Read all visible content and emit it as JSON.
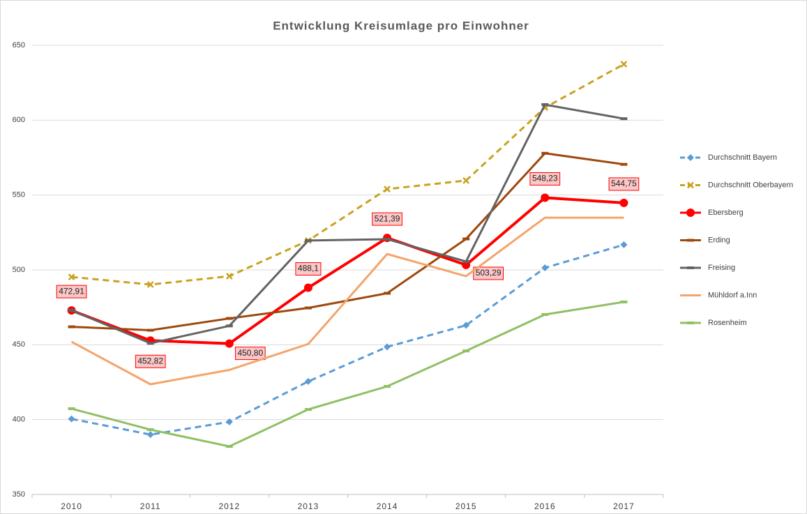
{
  "chart_data": {
    "type": "line",
    "title": "Entwicklung Kreisumlage pro Einwohner",
    "categories": [
      "2010",
      "2011",
      "2012",
      "2013",
      "2014",
      "2015",
      "2016",
      "2017"
    ],
    "ylim": [
      350,
      650
    ],
    "yticks": [
      350,
      400,
      450,
      500,
      550,
      600,
      650
    ],
    "grid": true,
    "legend": "right",
    "series": [
      {
        "name": "Durchschnitt Bayern",
        "color": "#5b9bd5",
        "dash": true,
        "marker": "diamond",
        "values": [
          400.5,
          390,
          398.5,
          425.5,
          448.6,
          463,
          501.4,
          516.8
        ]
      },
      {
        "name": "Durchschnitt Oberbayern",
        "color": "#c9a21f",
        "dash": true,
        "marker": "x",
        "values": [
          495.3,
          490.2,
          495.8,
          519.6,
          554,
          559.7,
          608.4,
          637.4
        ]
      },
      {
        "name": "Ebersberg",
        "color": "#ff0000",
        "dash": false,
        "marker": "circle",
        "values": [
          472.91,
          452.82,
          450.8,
          488.1,
          521.39,
          503.29,
          548.23,
          544.75
        ],
        "value_labels": [
          "472,91",
          "452,82",
          "450,80",
          "488,1",
          "521,39",
          "503,29",
          "548,23",
          "544,75"
        ]
      },
      {
        "name": "Erding",
        "color": "#9e480e",
        "dash": false,
        "marker": "dash",
        "values": [
          462,
          459.7,
          467.6,
          474.6,
          484.4,
          520.7,
          577.9,
          570.5
        ]
      },
      {
        "name": "Freising",
        "color": "#636363",
        "dash": false,
        "marker": "dash",
        "values": [
          473,
          451,
          462.6,
          519.6,
          520.5,
          505.6,
          610.4,
          601
        ]
      },
      {
        "name": "Mühldorf a.Inn",
        "color": "#f4a46a",
        "dash": false,
        "marker": "none",
        "values": [
          452,
          423.6,
          433.2,
          450.5,
          510.6,
          495.8,
          534.9,
          534.9
        ]
      },
      {
        "name": "Rosenheim",
        "color": "#8fc063",
        "dash": false,
        "marker": "dash",
        "values": [
          407.3,
          393.3,
          382.1,
          406.8,
          422.2,
          445.9,
          470.2,
          478.6
        ]
      }
    ]
  }
}
